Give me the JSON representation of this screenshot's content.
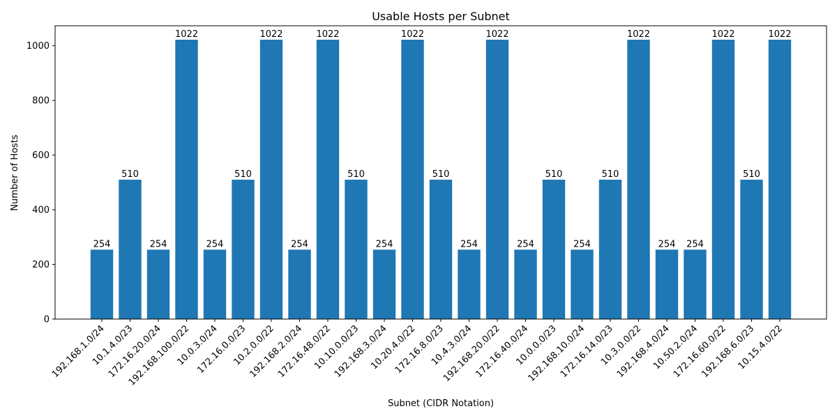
{
  "chart_data": {
    "type": "bar",
    "title": "Usable Hosts per Subnet",
    "xlabel": "Subnet (CIDR Notation)",
    "ylabel": "Number of Hosts",
    "ylim": [
      0,
      1073
    ],
    "yticks": [
      0,
      200,
      400,
      600,
      800,
      1000
    ],
    "grid": false,
    "bar_color": "#1f77b4",
    "categories": [
      "192.168.1.0/24",
      "10.1.4.0/23",
      "172.16.20.0/24",
      "192.168.100.0/22",
      "10.0.3.0/24",
      "172.16.0.0/23",
      "10.2.0.0/22",
      "192.168.2.0/24",
      "172.16.48.0/22",
      "10.10.0.0/23",
      "192.168.3.0/24",
      "10.20.4.0/22",
      "172.16.8.0/23",
      "10.4.3.0/24",
      "192.168.20.0/22",
      "172.16.40.0/24",
      "10.0.0.0/23",
      "192.168.10.0/24",
      "172.16.14.0/23",
      "10.3.0.0/22",
      "192.168.4.0/24",
      "10.50.2.0/24",
      "172.16.60.0/22",
      "192.168.6.0/23",
      "10.15.4.0/22"
    ],
    "values": [
      254,
      510,
      254,
      1022,
      254,
      510,
      1022,
      254,
      1022,
      510,
      254,
      1022,
      510,
      254,
      1022,
      254,
      510,
      254,
      510,
      1022,
      254,
      254,
      1022,
      510,
      1022
    ]
  }
}
